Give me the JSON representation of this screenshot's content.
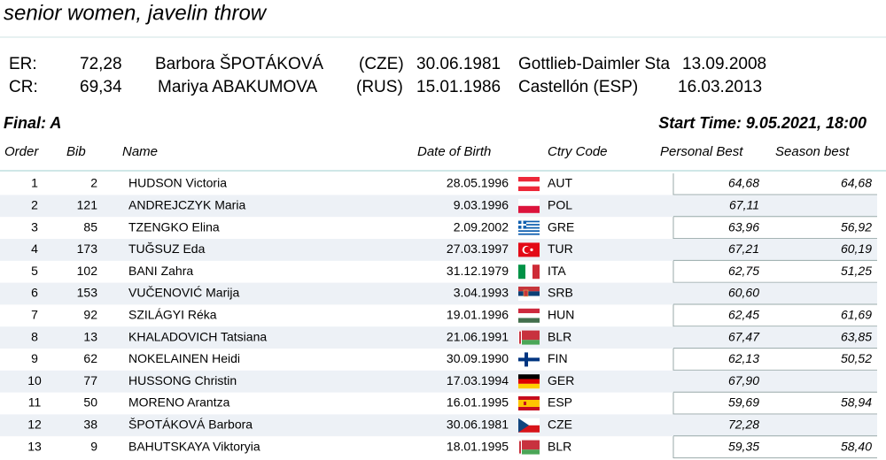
{
  "title": "senior women, javelin throw",
  "records": [
    {
      "label": "ER:",
      "mark": "72,28",
      "name": "Barbora ŠPOTÁKOVÁ",
      "country": "(CZE)",
      "dob": "30.06.1981",
      "venue": "Gottlieb-Daimler Sta",
      "date": "13.09.2008"
    },
    {
      "label": "CR:",
      "mark": "69,34",
      "name": "Mariya ABAKUMOVA",
      "country": "(RUS)",
      "dob": "15.01.1986",
      "venue": "Castellón (ESP)",
      "date": "16.03.2013"
    }
  ],
  "final": "Final: A",
  "start_time": "Start Time: 9.05.2021, 18:00",
  "table": {
    "columns": [
      "Order",
      "Bib",
      "Name",
      "Date of Birth",
      "Ctry Code",
      "Personal Best",
      "Season best"
    ],
    "rows": [
      [
        "1",
        "2",
        "HUDSON Victoria",
        "28.05.1996",
        "AUT",
        "64,68",
        "64,68"
      ],
      [
        "2",
        "121",
        "ANDREJCZYK Maria",
        "9.03.1996",
        "POL",
        "67,11"
      ],
      [
        "3",
        "85",
        "TZENGKO Elina",
        "2.09.2002",
        "GRE",
        "63,96",
        "56,92"
      ],
      [
        "4",
        "173",
        "TUĞSUZ Eda",
        "27.03.1997",
        "TUR",
        "67,21",
        "60,19"
      ],
      [
        "5",
        "102",
        "BANI Zahra",
        "31.12.1979",
        "ITA",
        "62,75",
        "51,25"
      ],
      [
        "6",
        "153",
        "VUČENOVIĆ Marija",
        "3.04.1993",
        "SRB",
        "60,60"
      ],
      [
        "7",
        "92",
        "SZILÁGYI Réka",
        "19.01.1996",
        "HUN",
        "62,45",
        "61,69"
      ],
      [
        "8",
        "13",
        "KHALADOVICH Tatsiana",
        "21.06.1991",
        "BLR",
        "67,47",
        "63,85"
      ],
      [
        "9",
        "62",
        "NOKELAINEN Heidi",
        "30.09.1990",
        "FIN",
        "62,13",
        "50,52"
      ],
      [
        "10",
        "77",
        "HUSSONG Christin",
        "17.03.1994",
        "GER",
        "67,90"
      ],
      [
        "11",
        "50",
        "MORENO Arantza",
        "16.01.1995",
        "ESP",
        "59,69",
        "58,94"
      ],
      [
        "12",
        "38",
        "ŠPOTÁKOVÁ Barbora",
        "30.06.1981",
        "CZE",
        "72,28"
      ],
      [
        "13",
        "9",
        "BAHUTSKAYA Viktoryia",
        "18.01.1995",
        "BLR",
        "59,35",
        "58,40"
      ]
    ]
  }
}
